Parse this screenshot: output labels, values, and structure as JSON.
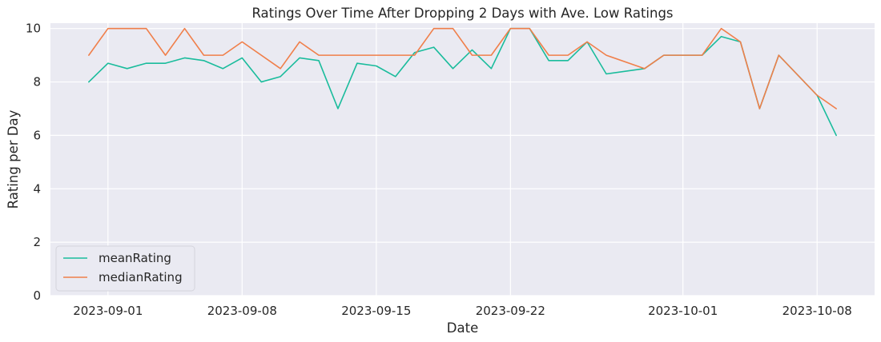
{
  "chart_data": {
    "type": "line",
    "title": "Ratings Over Time After Dropping 2 Days with Ave. Low Ratings",
    "xlabel": "Date",
    "ylabel": "Rating per Day",
    "x_type": "date",
    "xlim": [
      "2023-08-29",
      "2023-10-11"
    ],
    "ylim": [
      0,
      10.2
    ],
    "x_ticks": [
      "2023-09-01",
      "2023-09-08",
      "2023-09-15",
      "2023-09-22",
      "2023-10-01",
      "2023-10-08"
    ],
    "y_ticks": [
      0,
      2,
      4,
      6,
      8,
      10
    ],
    "grid": true,
    "background": "#eaeaf2",
    "legend_position": "lower-left",
    "series": [
      {
        "name": "meanRating",
        "color": "#1abc9c",
        "points": [
          [
            "2023-08-31",
            8.0
          ],
          [
            "2023-09-01",
            8.7
          ],
          [
            "2023-09-02",
            8.5
          ],
          [
            "2023-09-03",
            8.7
          ],
          [
            "2023-09-04",
            8.7
          ],
          [
            "2023-09-05",
            8.9
          ],
          [
            "2023-09-06",
            8.8
          ],
          [
            "2023-09-07",
            8.5
          ],
          [
            "2023-09-08",
            8.9
          ],
          [
            "2023-09-09",
            8.0
          ],
          [
            "2023-09-10",
            8.2
          ],
          [
            "2023-09-11",
            8.9
          ],
          [
            "2023-09-12",
            8.8
          ],
          [
            "2023-09-13",
            7.0
          ],
          [
            "2023-09-14",
            8.7
          ],
          [
            "2023-09-15",
            8.6
          ],
          [
            "2023-09-16",
            8.2
          ],
          [
            "2023-09-17",
            9.1
          ],
          [
            "2023-09-18",
            9.3
          ],
          [
            "2023-09-19",
            8.5
          ],
          [
            "2023-09-20",
            9.2
          ],
          [
            "2023-09-21",
            8.5
          ],
          [
            "2023-09-22",
            10.0
          ],
          [
            "2023-09-23",
            10.0
          ],
          [
            "2023-09-24",
            8.8
          ],
          [
            "2023-09-25",
            8.8
          ],
          [
            "2023-09-26",
            9.5
          ],
          [
            "2023-09-27",
            8.3
          ],
          [
            "2023-09-29",
            8.5
          ],
          [
            "2023-09-30",
            9.0
          ],
          [
            "2023-10-01",
            9.0
          ],
          [
            "2023-10-02",
            9.0
          ],
          [
            "2023-10-03",
            9.7
          ],
          [
            "2023-10-04",
            9.5
          ],
          [
            "2023-10-05",
            7.0
          ],
          [
            "2023-10-06",
            9.0
          ],
          [
            "2023-10-08",
            7.5
          ],
          [
            "2023-10-09",
            6.0
          ]
        ]
      },
      {
        "name": "medianRating",
        "color": "#f07f4a",
        "points": [
          [
            "2023-08-31",
            9.0
          ],
          [
            "2023-09-01",
            10.0
          ],
          [
            "2023-09-02",
            10.0
          ],
          [
            "2023-09-03",
            10.0
          ],
          [
            "2023-09-04",
            9.0
          ],
          [
            "2023-09-05",
            10.0
          ],
          [
            "2023-09-06",
            9.0
          ],
          [
            "2023-09-07",
            9.0
          ],
          [
            "2023-09-08",
            9.5
          ],
          [
            "2023-09-10",
            8.5
          ],
          [
            "2023-09-11",
            9.5
          ],
          [
            "2023-09-12",
            9.0
          ],
          [
            "2023-09-13",
            9.0
          ],
          [
            "2023-09-14",
            9.0
          ],
          [
            "2023-09-15",
            9.0
          ],
          [
            "2023-09-16",
            9.0
          ],
          [
            "2023-09-17",
            9.0
          ],
          [
            "2023-09-18",
            10.0
          ],
          [
            "2023-09-19",
            10.0
          ],
          [
            "2023-09-20",
            9.0
          ],
          [
            "2023-09-21",
            9.0
          ],
          [
            "2023-09-22",
            10.0
          ],
          [
            "2023-09-23",
            10.0
          ],
          [
            "2023-09-24",
            9.0
          ],
          [
            "2023-09-25",
            9.0
          ],
          [
            "2023-09-26",
            9.5
          ],
          [
            "2023-09-27",
            9.0
          ],
          [
            "2023-09-29",
            8.5
          ],
          [
            "2023-09-30",
            9.0
          ],
          [
            "2023-10-01",
            9.0
          ],
          [
            "2023-10-02",
            9.0
          ],
          [
            "2023-10-03",
            10.0
          ],
          [
            "2023-10-04",
            9.5
          ],
          [
            "2023-10-05",
            7.0
          ],
          [
            "2023-10-06",
            9.0
          ],
          [
            "2023-10-08",
            7.5
          ],
          [
            "2023-10-09",
            7.0
          ]
        ]
      }
    ]
  }
}
